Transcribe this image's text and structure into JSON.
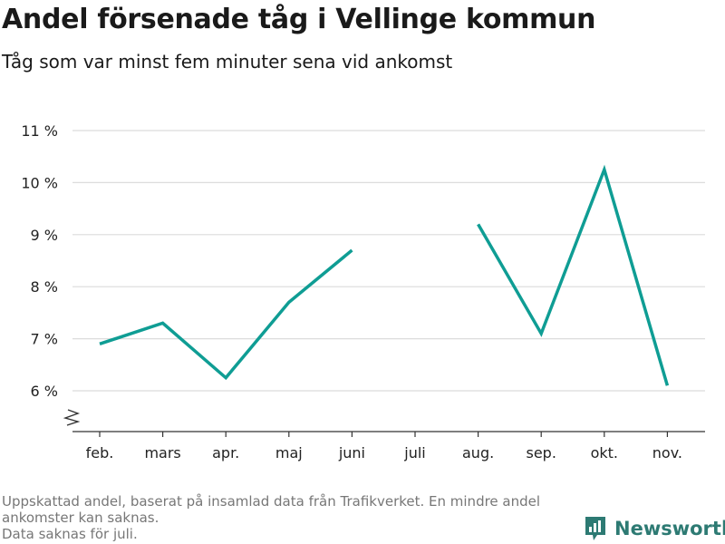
{
  "title": "Andel försenade tåg i Vellinge kommun",
  "subtitle": "Tåg som var minst fem minuter sena vid ankomst",
  "footnote": {
    "line1": "Uppskattad andel, baserat på insamlad data från Trafikverket. En mindre andel",
    "line2": "ankomster kan saknas.",
    "line3": "Data saknas för juli."
  },
  "brand": {
    "name": "Newsworthy",
    "icon": "newsworthy-logo-icon"
  },
  "colors": {
    "line": "#0f9d94",
    "grid": "#dcdcdc",
    "axis": "#333333",
    "brand": "#2d7a73"
  },
  "chart_data": {
    "type": "line",
    "title": "Andel försenade tåg i Vellinge kommun",
    "subtitle": "Tåg som var minst fem minuter sena vid ankomst",
    "categories": [
      "feb.",
      "mars",
      "apr.",
      "maj",
      "juni",
      "juli",
      "aug.",
      "sep.",
      "okt.",
      "nov."
    ],
    "series": [
      {
        "values": [
          6.9,
          7.3,
          6.25,
          7.7,
          8.7,
          null,
          9.2,
          7.1,
          10.25,
          6.1
        ]
      }
    ],
    "yticks": [
      6,
      7,
      8,
      9,
      10,
      11
    ],
    "ytick_labels": [
      "6 %",
      "7 %",
      "8 %",
      "9 %",
      "10 %",
      "11 %"
    ],
    "ylim": [
      5.3,
      11
    ],
    "broken_axis": true,
    "grid": true,
    "xlabel": "",
    "ylabel": ""
  }
}
